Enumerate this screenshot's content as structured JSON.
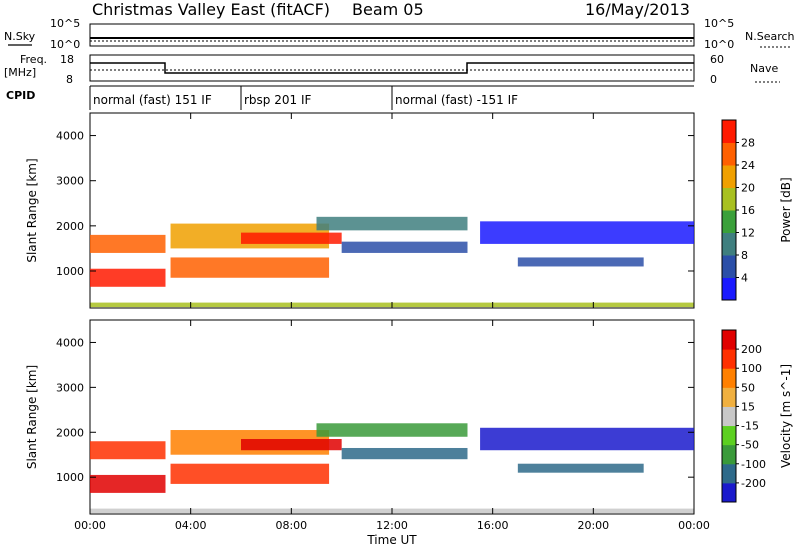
{
  "header": {
    "title": "Christmas Valley East (fitACF)",
    "beam": "Beam 05",
    "date": "16/May/2013"
  },
  "strip_labels": {
    "nsky": "N.Sky",
    "freq_line1": "Freq.",
    "freq_line2": "[MHz]",
    "cpid": "CPID",
    "nsearch": "N.Search",
    "nave": "Nave"
  },
  "strip_ticks": {
    "noise_left": [
      "10^5",
      "10^0"
    ],
    "noise_right": [
      "10^5",
      "10^0"
    ],
    "freq_left": [
      "18",
      "8"
    ],
    "freq_right": [
      "60",
      "0"
    ]
  },
  "cpid_segments": [
    {
      "label": "normal (fast) 151 IF",
      "start_hour": 0.0
    },
    {
      "label": "rbsp 201 IF",
      "start_hour": 6.0
    },
    {
      "label": "normal (fast) -151 IF",
      "start_hour": 12.0
    }
  ],
  "chart_data": [
    {
      "type": "heatmap",
      "name": "power",
      "ylabel": "Slant Range [km]",
      "xlabel": "Time UT",
      "xlim_hours": [
        0,
        24
      ],
      "ylim_km": [
        180,
        4500
      ],
      "x_tick_labels": [
        "00:00",
        "04:00",
        "08:00",
        "12:00",
        "16:00",
        "20:00",
        "00:00"
      ],
      "x_tick_hours": [
        0,
        4,
        8,
        12,
        16,
        20,
        24
      ],
      "y_tick_labels": [
        "1000",
        "2000",
        "3000",
        "4000"
      ],
      "y_ticks_km": [
        1000,
        2000,
        3000,
        4000
      ],
      "colorbar_label": "Power [dB]",
      "colorbar_tick_labels": [
        "4",
        "8",
        "12",
        "16",
        "20",
        "24",
        "28"
      ],
      "colorbar_colors": [
        "#1a1aff",
        "#2b4fa8",
        "#3f7f7f",
        "#3aa03a",
        "#a8c020",
        "#f0a000",
        "#ff6000",
        "#ff1a00"
      ],
      "clim": [
        0,
        30
      ]
    },
    {
      "type": "heatmap",
      "name": "velocity",
      "ylabel": "Slant Range [km]",
      "xlabel": "Time UT",
      "xlim_hours": [
        0,
        24
      ],
      "ylim_km": [
        180,
        4500
      ],
      "x_tick_labels": [
        "00:00",
        "04:00",
        "08:00",
        "12:00",
        "16:00",
        "20:00",
        "00:00"
      ],
      "x_tick_hours": [
        0,
        4,
        8,
        12,
        16,
        20,
        24
      ],
      "y_tick_labels": [
        "1000",
        "2000",
        "3000",
        "4000"
      ],
      "y_ticks_km": [
        1000,
        2000,
        3000,
        4000
      ],
      "colorbar_label": "Velocity [m s^-1]",
      "colorbar_tick_labels": [
        "200",
        "100",
        "50",
        "15",
        "-15",
        "-50",
        "-100",
        "-200"
      ],
      "colorbar_colors": [
        "#1a1acc",
        "#2e6a8a",
        "#3a9a3a",
        "#5cd020",
        "#c8c8c8",
        "#f0b040",
        "#ff8000",
        "#ff3000",
        "#e00000"
      ],
      "clim": [
        -250,
        250
      ]
    }
  ]
}
